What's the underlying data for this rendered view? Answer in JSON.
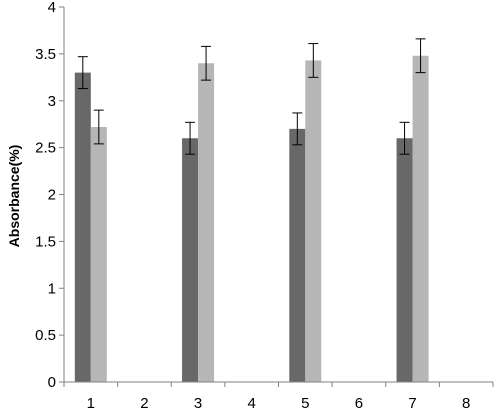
{
  "chart_data": {
    "type": "bar",
    "title": "",
    "xlabel": "",
    "ylabel": "Absorbance(%)",
    "categories": [
      "1",
      "2",
      "3",
      "4",
      "5",
      "6",
      "7",
      "8"
    ],
    "ylim": [
      0,
      4
    ],
    "yticks": [
      0,
      0.5,
      1,
      1.5,
      2,
      2.5,
      3,
      3.5,
      4
    ],
    "ytick_labels": [
      "0",
      "0.5",
      "1",
      "1.5",
      "2",
      "2.5",
      "3",
      "3.5",
      "4"
    ],
    "grid": false,
    "legend": "none",
    "series": [
      {
        "color": "#686868",
        "values": [
          3.3,
          null,
          2.6,
          null,
          2.7,
          null,
          2.6,
          null
        ],
        "errors": [
          0.17,
          null,
          0.17,
          null,
          0.17,
          null,
          0.17,
          null
        ]
      },
      {
        "color": "#b6b6b6",
        "values": [
          2.72,
          null,
          3.4,
          null,
          3.43,
          null,
          3.48,
          null
        ],
        "errors": [
          0.18,
          null,
          0.18,
          null,
          0.18,
          null,
          0.18,
          null
        ]
      }
    ]
  }
}
